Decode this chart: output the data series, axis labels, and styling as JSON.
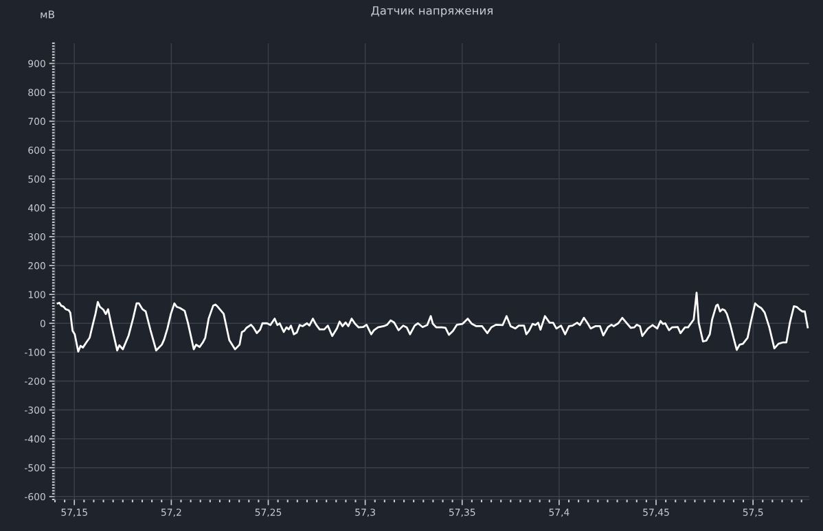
{
  "chart_data": {
    "type": "line",
    "title": "Датчик напряжения",
    "ylabel": "мВ",
    "xlim": [
      57.14,
      57.529
    ],
    "ylim": [
      -610,
      970
    ],
    "xticks": [
      {
        "value": 57.15,
        "label": "57,15"
      },
      {
        "value": 57.2,
        "label": "57,2"
      },
      {
        "value": 57.25,
        "label": "57,25"
      },
      {
        "value": 57.3,
        "label": "57,3"
      },
      {
        "value": 57.35,
        "label": "57,35"
      },
      {
        "value": 57.4,
        "label": "57,4"
      },
      {
        "value": 57.45,
        "label": "57,45"
      },
      {
        "value": 57.5,
        "label": "57,5"
      }
    ],
    "yticks": [
      -600,
      -500,
      -400,
      -300,
      -200,
      -100,
      0,
      100,
      200,
      300,
      400,
      500,
      600,
      700,
      800,
      900
    ],
    "grid": true,
    "marker": "none",
    "line_style": "solid",
    "series": [
      {
        "color": "#ffffff",
        "x": [
          57.1414,
          57.1423,
          57.1432,
          57.1444,
          57.1455,
          57.1471,
          57.1479,
          57.1491,
          57.1502,
          57.152,
          57.1532,
          57.1544,
          57.1562,
          57.1579,
          57.1597,
          57.1609,
          57.1621,
          57.1632,
          57.165,
          57.1662,
          57.1674,
          57.1691,
          57.1721,
          57.1732,
          57.175,
          57.178,
          57.1803,
          57.1821,
          57.1833,
          57.1851,
          57.1868,
          57.1892,
          57.1922,
          57.1951,
          57.1963,
          57.198,
          57.1998,
          57.2016,
          57.2028,
          57.2045,
          57.2069,
          57.2086,
          57.2116,
          57.2128,
          57.2146,
          57.2163,
          57.2175,
          57.2193,
          57.2216,
          57.2228,
          57.224,
          57.227,
          57.2299,
          57.2329,
          57.2352,
          57.2364,
          57.2376,
          57.2387,
          57.2411,
          57.2423,
          57.2441,
          57.2458,
          57.247,
          57.2494,
          57.2511,
          57.2533,
          57.2547,
          57.2559,
          57.258,
          57.2594,
          57.2606,
          57.2617,
          57.2632,
          57.2647,
          57.2662,
          57.2677,
          57.27,
          57.2712,
          57.273,
          57.2747,
          57.2765,
          57.2789,
          57.2807,
          57.283,
          57.2854,
          57.2868,
          57.2883,
          57.2899,
          57.2913,
          57.293,
          57.2948,
          57.2966,
          57.2989,
          57.3007,
          57.3031,
          57.3045,
          57.3066,
          57.3095,
          57.3113,
          57.3131,
          57.3149,
          57.3172,
          57.3196,
          57.3214,
          57.3231,
          57.3255,
          57.3272,
          57.3296,
          57.332,
          57.3338,
          57.3349,
          57.3367,
          57.3396,
          57.3414,
          57.3432,
          57.3453,
          57.3473,
          57.3502,
          57.3529,
          57.355,
          57.3573,
          57.3603,
          57.363,
          57.365,
          57.3674,
          57.3709,
          57.3729,
          57.375,
          57.3774,
          57.3792,
          57.3819,
          57.3831,
          57.3845,
          57.3863,
          57.3878,
          57.3892,
          57.3904,
          57.3927,
          57.3951,
          57.3969,
          57.3986,
          57.401,
          57.4031,
          57.4051,
          57.4069,
          57.4093,
          57.4107,
          57.4128,
          57.4149,
          57.4163,
          57.4187,
          57.4211,
          57.4228,
          57.4252,
          57.427,
          57.4281,
          57.4305,
          57.4326,
          57.4352,
          57.437,
          57.4388,
          57.44,
          57.4417,
          57.4429,
          57.4458,
          57.4482,
          57.4506,
          57.4523,
          57.4535,
          57.4547,
          57.4567,
          57.4582,
          57.4612,
          57.4626,
          57.4649,
          57.4665,
          57.468,
          57.4694,
          57.4709,
          57.472,
          57.4742,
          57.4759,
          57.4777,
          57.4789,
          57.481,
          57.4818,
          57.483,
          57.4842,
          57.4854,
          57.4865,
          57.4883,
          57.4901,
          57.4916,
          57.4931,
          57.4948,
          57.4972,
          57.4989,
          57.5011,
          57.5027,
          57.5042,
          57.506,
          57.5084,
          57.511,
          57.5131,
          57.5155,
          57.5172,
          57.519,
          57.5211,
          57.5225,
          57.524,
          57.5255,
          57.5267,
          57.5282
        ],
        "values": [
          69,
          71,
          61,
          58,
          49,
          45,
          37,
          -26,
          -38,
          -98,
          -78,
          -84,
          -66,
          -50,
          1,
          33,
          74,
          57,
          47,
          32,
          49,
          -6,
          -94,
          -76,
          -90,
          -42,
          17,
          69,
          69,
          49,
          41,
          -22,
          -94,
          -74,
          -56,
          -18,
          33,
          69,
          57,
          53,
          43,
          1,
          -90,
          -74,
          -82,
          -66,
          -50,
          17,
          61,
          65,
          57,
          33,
          -58,
          -90,
          -74,
          -30,
          -26,
          -16,
          -5,
          -14,
          -34,
          -22,
          0,
          0,
          -6,
          16,
          -6,
          0,
          -30,
          -14,
          -21,
          -8,
          -38,
          -32,
          -6,
          -10,
          0,
          -8,
          16,
          -5,
          -21,
          -21,
          -8,
          -44,
          -18,
          6,
          -10,
          3,
          -10,
          16,
          -2,
          -14,
          -13,
          -5,
          -38,
          -24,
          -14,
          -10,
          -5,
          10,
          3,
          -24,
          -8,
          -14,
          -38,
          -8,
          0,
          -13,
          -6,
          25,
          -2,
          -14,
          -14,
          -16,
          -40,
          -26,
          -5,
          -2,
          16,
          -2,
          -10,
          -10,
          -34,
          -14,
          -5,
          -6,
          25,
          -10,
          -18,
          -8,
          -8,
          -38,
          -26,
          -2,
          -6,
          2,
          -22,
          25,
          2,
          2,
          -18,
          -8,
          -38,
          -10,
          -8,
          2,
          -6,
          19,
          -2,
          -18,
          -10,
          -10,
          -42,
          -13,
          -5,
          -10,
          0,
          19,
          -2,
          -16,
          -14,
          -5,
          -10,
          -44,
          -18,
          -6,
          -18,
          8,
          -2,
          0,
          -24,
          -14,
          -13,
          -34,
          -14,
          -14,
          0,
          13,
          106,
          2,
          -63,
          -60,
          -38,
          13,
          61,
          65,
          41,
          49,
          45,
          33,
          -6,
          -54,
          -92,
          -74,
          -71,
          -50,
          6,
          69,
          59,
          53,
          37,
          -14,
          -87,
          -71,
          -66,
          -66,
          2,
          59,
          57,
          48,
          41,
          41,
          -14
        ]
      }
    ]
  }
}
